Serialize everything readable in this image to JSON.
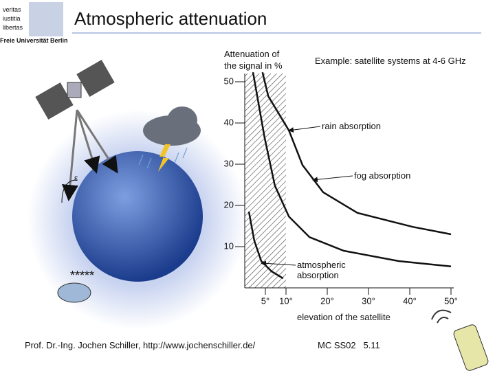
{
  "header": {
    "logo": [
      "veritas",
      "iustitia",
      "libertas"
    ],
    "university": "Freie Universität Berlin",
    "title": "Atmospheric attenuation"
  },
  "illustration": {
    "angle": "ε"
  },
  "chart_data": {
    "type": "line",
    "ylabel": [
      "Attenuation of",
      "the signal in %"
    ],
    "subtitle": "Example: satellite systems at 4-6 GHz",
    "xlabel": "elevation of the satellite",
    "xlim": [
      0,
      50
    ],
    "ylim": [
      0,
      52
    ],
    "xticks": [
      {
        "value": 5,
        "label": "5°"
      },
      {
        "value": 10,
        "label": "10°"
      },
      {
        "value": 20,
        "label": "20°"
      },
      {
        "value": 30,
        "label": "30°"
      },
      {
        "value": 40,
        "label": "40°"
      },
      {
        "value": 50,
        "label": "50°"
      }
    ],
    "yticks": [
      10,
      20,
      30,
      40,
      50
    ],
    "shaded_xlim": [
      0,
      10
    ],
    "color": "#111111",
    "series": [
      {
        "name": "rain absorption",
        "x": [
          4.3,
          5.7,
          10.7,
          14,
          19,
          27.3,
          40.7,
          50
        ],
        "values": [
          52.3,
          46.5,
          38.2,
          29.8,
          23.2,
          18.2,
          14.8,
          13
        ]
      },
      {
        "name": "fog absorption",
        "x": [
          2,
          4.8,
          7.3,
          10.7,
          15.7,
          24,
          37.3,
          50
        ],
        "values": [
          52.3,
          36.5,
          24.8,
          17.3,
          12.3,
          9,
          6.5,
          5.2
        ]
      },
      {
        "name": "atmospheric absorption",
        "x": [
          1,
          2.3,
          4,
          6.5,
          9.3
        ],
        "values": [
          18.5,
          11.5,
          6.5,
          4,
          2.3
        ]
      }
    ]
  },
  "footer": {
    "author": "Prof. Dr.-Ing. Jochen Schiller, http://www.jochenschiller.de/",
    "slide": "MC SS02   5.11"
  }
}
